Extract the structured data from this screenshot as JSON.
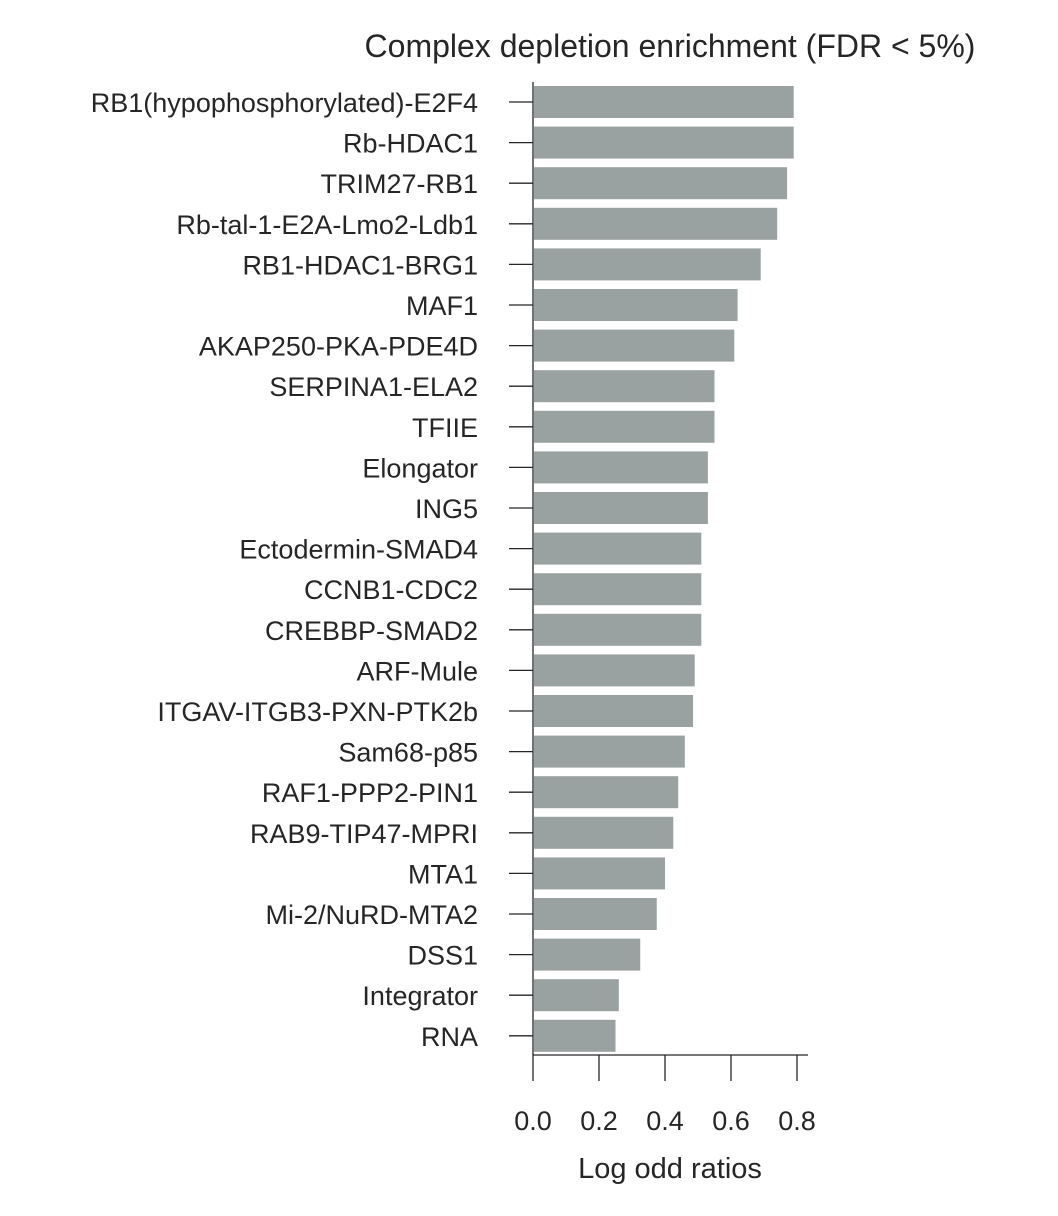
{
  "chart_data": {
    "type": "bar",
    "orientation": "horizontal",
    "title": "Complex depletion enrichment (FDR < 5%)",
    "xlabel": "Log odd ratios",
    "ylabel": "",
    "xlim": [
      0,
      0.83
    ],
    "xticks": [
      0.0,
      0.2,
      0.4,
      0.6,
      0.8
    ],
    "xtick_labels": [
      "0.0",
      "0.2",
      "0.4",
      "0.6",
      "0.8"
    ],
    "grid": false,
    "legend": "none",
    "bar_color": "#9aa1a1",
    "categories": [
      "RB1(hypophosphorylated)-E2F4",
      "Rb-HDAC1",
      "TRIM27-RB1",
      "Rb-tal-1-E2A-Lmo2-Ldb1",
      "RB1-HDAC1-BRG1",
      "MAF1",
      "AKAP250-PKA-PDE4D",
      "SERPINA1-ELA2",
      "TFIIE",
      "Elongator",
      "ING5",
      "Ectodermin-SMAD4",
      "CCNB1-CDC2",
      "CREBBP-SMAD2",
      "ARF-Mule",
      "ITGAV-ITGB3-PXN-PTK2b",
      "Sam68-p85",
      "RAF1-PPP2-PIN1",
      "RAB9-TIP47-MPRI",
      "MTA1",
      "Mi-2/NuRD-MTA2",
      "DSS1",
      "Integrator",
      "RNA"
    ],
    "values": [
      0.79,
      0.79,
      0.77,
      0.74,
      0.69,
      0.62,
      0.61,
      0.55,
      0.55,
      0.53,
      0.53,
      0.51,
      0.51,
      0.51,
      0.49,
      0.485,
      0.46,
      0.44,
      0.425,
      0.4,
      0.375,
      0.325,
      0.26,
      0.25
    ]
  }
}
